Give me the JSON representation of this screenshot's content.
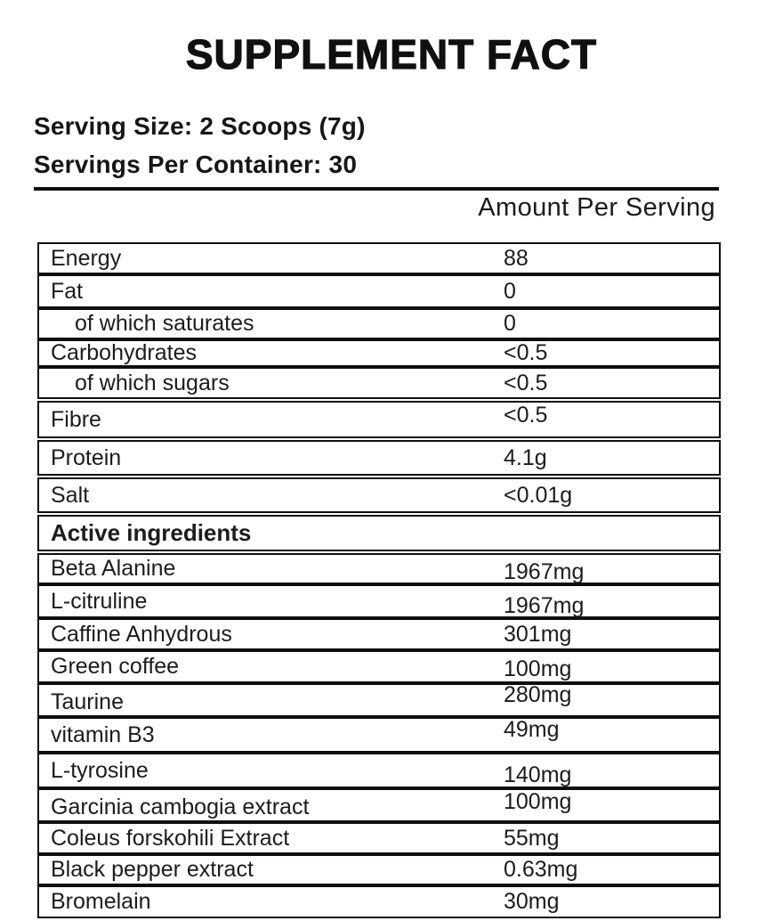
{
  "title": "SUPPLEMENT FACT",
  "header": {
    "serving_size": "Serving Size: 2 Scoops (7g)",
    "servings_per_container": "Servings Per Container: 30"
  },
  "table": {
    "amount_header": "Amount Per Serving",
    "rows": [
      {
        "name": "Energy",
        "value": "88"
      },
      {
        "name": "Fat",
        "value": "0"
      },
      {
        "name": "of which saturates",
        "value": "0",
        "indent": true
      },
      {
        "name": "Carbohydrates",
        "value": "<0.5"
      },
      {
        "name": "of which sugars",
        "value": "<0.5",
        "indent": true
      },
      {
        "name": "Fibre",
        "value": "<0.5"
      },
      {
        "name": "Protein",
        "value": "4.1g"
      },
      {
        "name": "Salt",
        "value": "<0.01g"
      },
      {
        "name": "Active ingredients",
        "value": "",
        "section": true
      },
      {
        "name": "Beta Alanine",
        "value": "1967mg"
      },
      {
        "name": "L-citruline",
        "value": "1967mg"
      },
      {
        "name": "Caffine Anhydrous",
        "value": "301mg"
      },
      {
        "name": "Green coffee",
        "value": "100mg"
      },
      {
        "name": "Taurine",
        "value": "280mg"
      },
      {
        "name": "vitamin B3",
        "value": "49mg"
      },
      {
        "name": "L-tyrosine",
        "value": "140mg"
      },
      {
        "name": "Garcinia cambogia extract",
        "value": "100mg"
      },
      {
        "name": "Coleus forskohili Extract",
        "value": "55mg"
      },
      {
        "name": "Black pepper extract",
        "value": "0.63mg"
      },
      {
        "name": "Bromelain",
        "value": "30mg"
      }
    ]
  },
  "colors": {
    "background": "#ffffff",
    "text": "#141414",
    "border": "#0e0e0e"
  }
}
